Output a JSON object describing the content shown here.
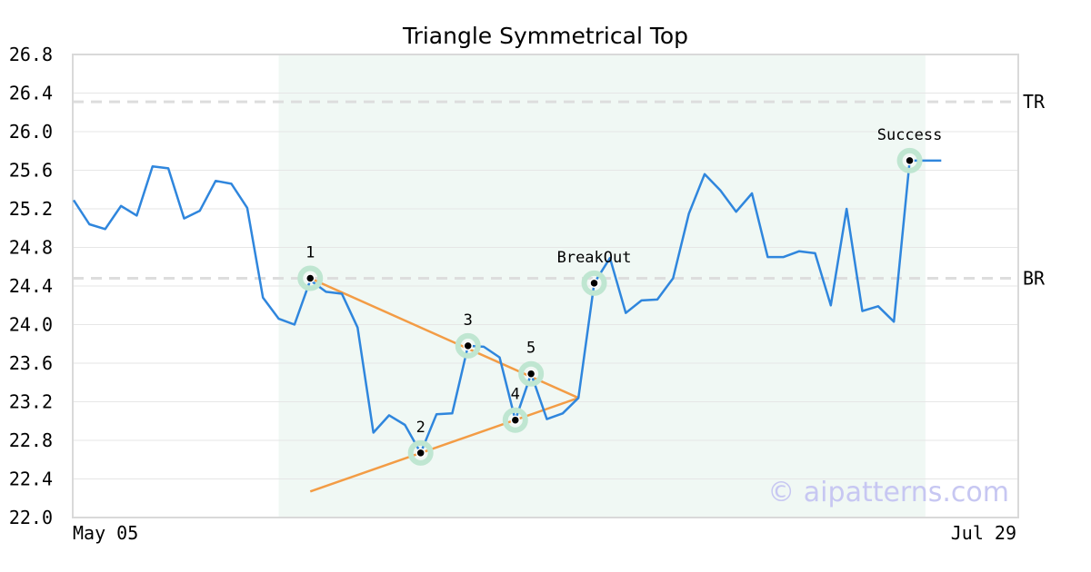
{
  "chart_data": {
    "type": "line",
    "title": "Triangle Symmetrical Top",
    "xlabel": "",
    "ylabel": "",
    "ylim": [
      22.0,
      26.8
    ],
    "yticks": [
      "22.0",
      "22.4",
      "22.8",
      "23.2",
      "23.6",
      "24.0",
      "24.4",
      "24.8",
      "25.2",
      "25.6",
      "26.0",
      "26.4",
      "26.8"
    ],
    "xtick_labels": [
      "May 05",
      "Jul 29"
    ],
    "grid": true,
    "colors": {
      "line": "#2f86dd",
      "trend": "#f39c45",
      "highlight_region": "#f0f8f4",
      "marker_halo": "#bfe6d1",
      "reference": "#dddddd",
      "gridline": "#e6e6e6",
      "frame": "#d9d9d9"
    },
    "series": [
      {
        "values": [
          25.29,
          25.04,
          24.99,
          25.23,
          25.13,
          25.64,
          25.62,
          25.1,
          25.18,
          25.49,
          25.46,
          25.21,
          24.28,
          24.06,
          24.0,
          24.46,
          24.34,
          24.32,
          23.97,
          22.88,
          23.06,
          22.96,
          22.67,
          23.07,
          23.08,
          23.78,
          23.77,
          23.66,
          23.01,
          23.49,
          23.02,
          23.08,
          23.24,
          24.43,
          24.69,
          24.12,
          24.25,
          24.26,
          24.48,
          25.15,
          25.56,
          25.39,
          25.17,
          25.36,
          24.7,
          24.7,
          24.76,
          24.74,
          24.2,
          25.2,
          24.14,
          24.19,
          24.03,
          25.7,
          25.7,
          25.7
        ]
      }
    ],
    "highlight_region": {
      "start_index": 13,
      "end_index": 54
    },
    "reference_lines": [
      {
        "label": "TR",
        "value": 26.31
      },
      {
        "label": "BR",
        "value": 24.48
      }
    ],
    "trend_lines": [
      {
        "from": [
          15,
          24.48
        ],
        "to": [
          32,
          23.24
        ]
      },
      {
        "from": [
          15,
          22.27
        ],
        "to": [
          32,
          23.24
        ]
      }
    ],
    "annotations": [
      {
        "label": "1",
        "index": 15,
        "value": 24.48
      },
      {
        "label": "2",
        "index": 22,
        "value": 22.67
      },
      {
        "label": "3",
        "index": 25,
        "value": 23.78
      },
      {
        "label": "4",
        "index": 28,
        "value": 23.01
      },
      {
        "label": "5",
        "index": 29,
        "value": 23.49
      },
      {
        "label": "BreakOut",
        "index": 33,
        "value": 24.43
      },
      {
        "label": "Success",
        "index": 53,
        "value": 25.7
      }
    ],
    "watermark": "© aipatterns.com"
  }
}
